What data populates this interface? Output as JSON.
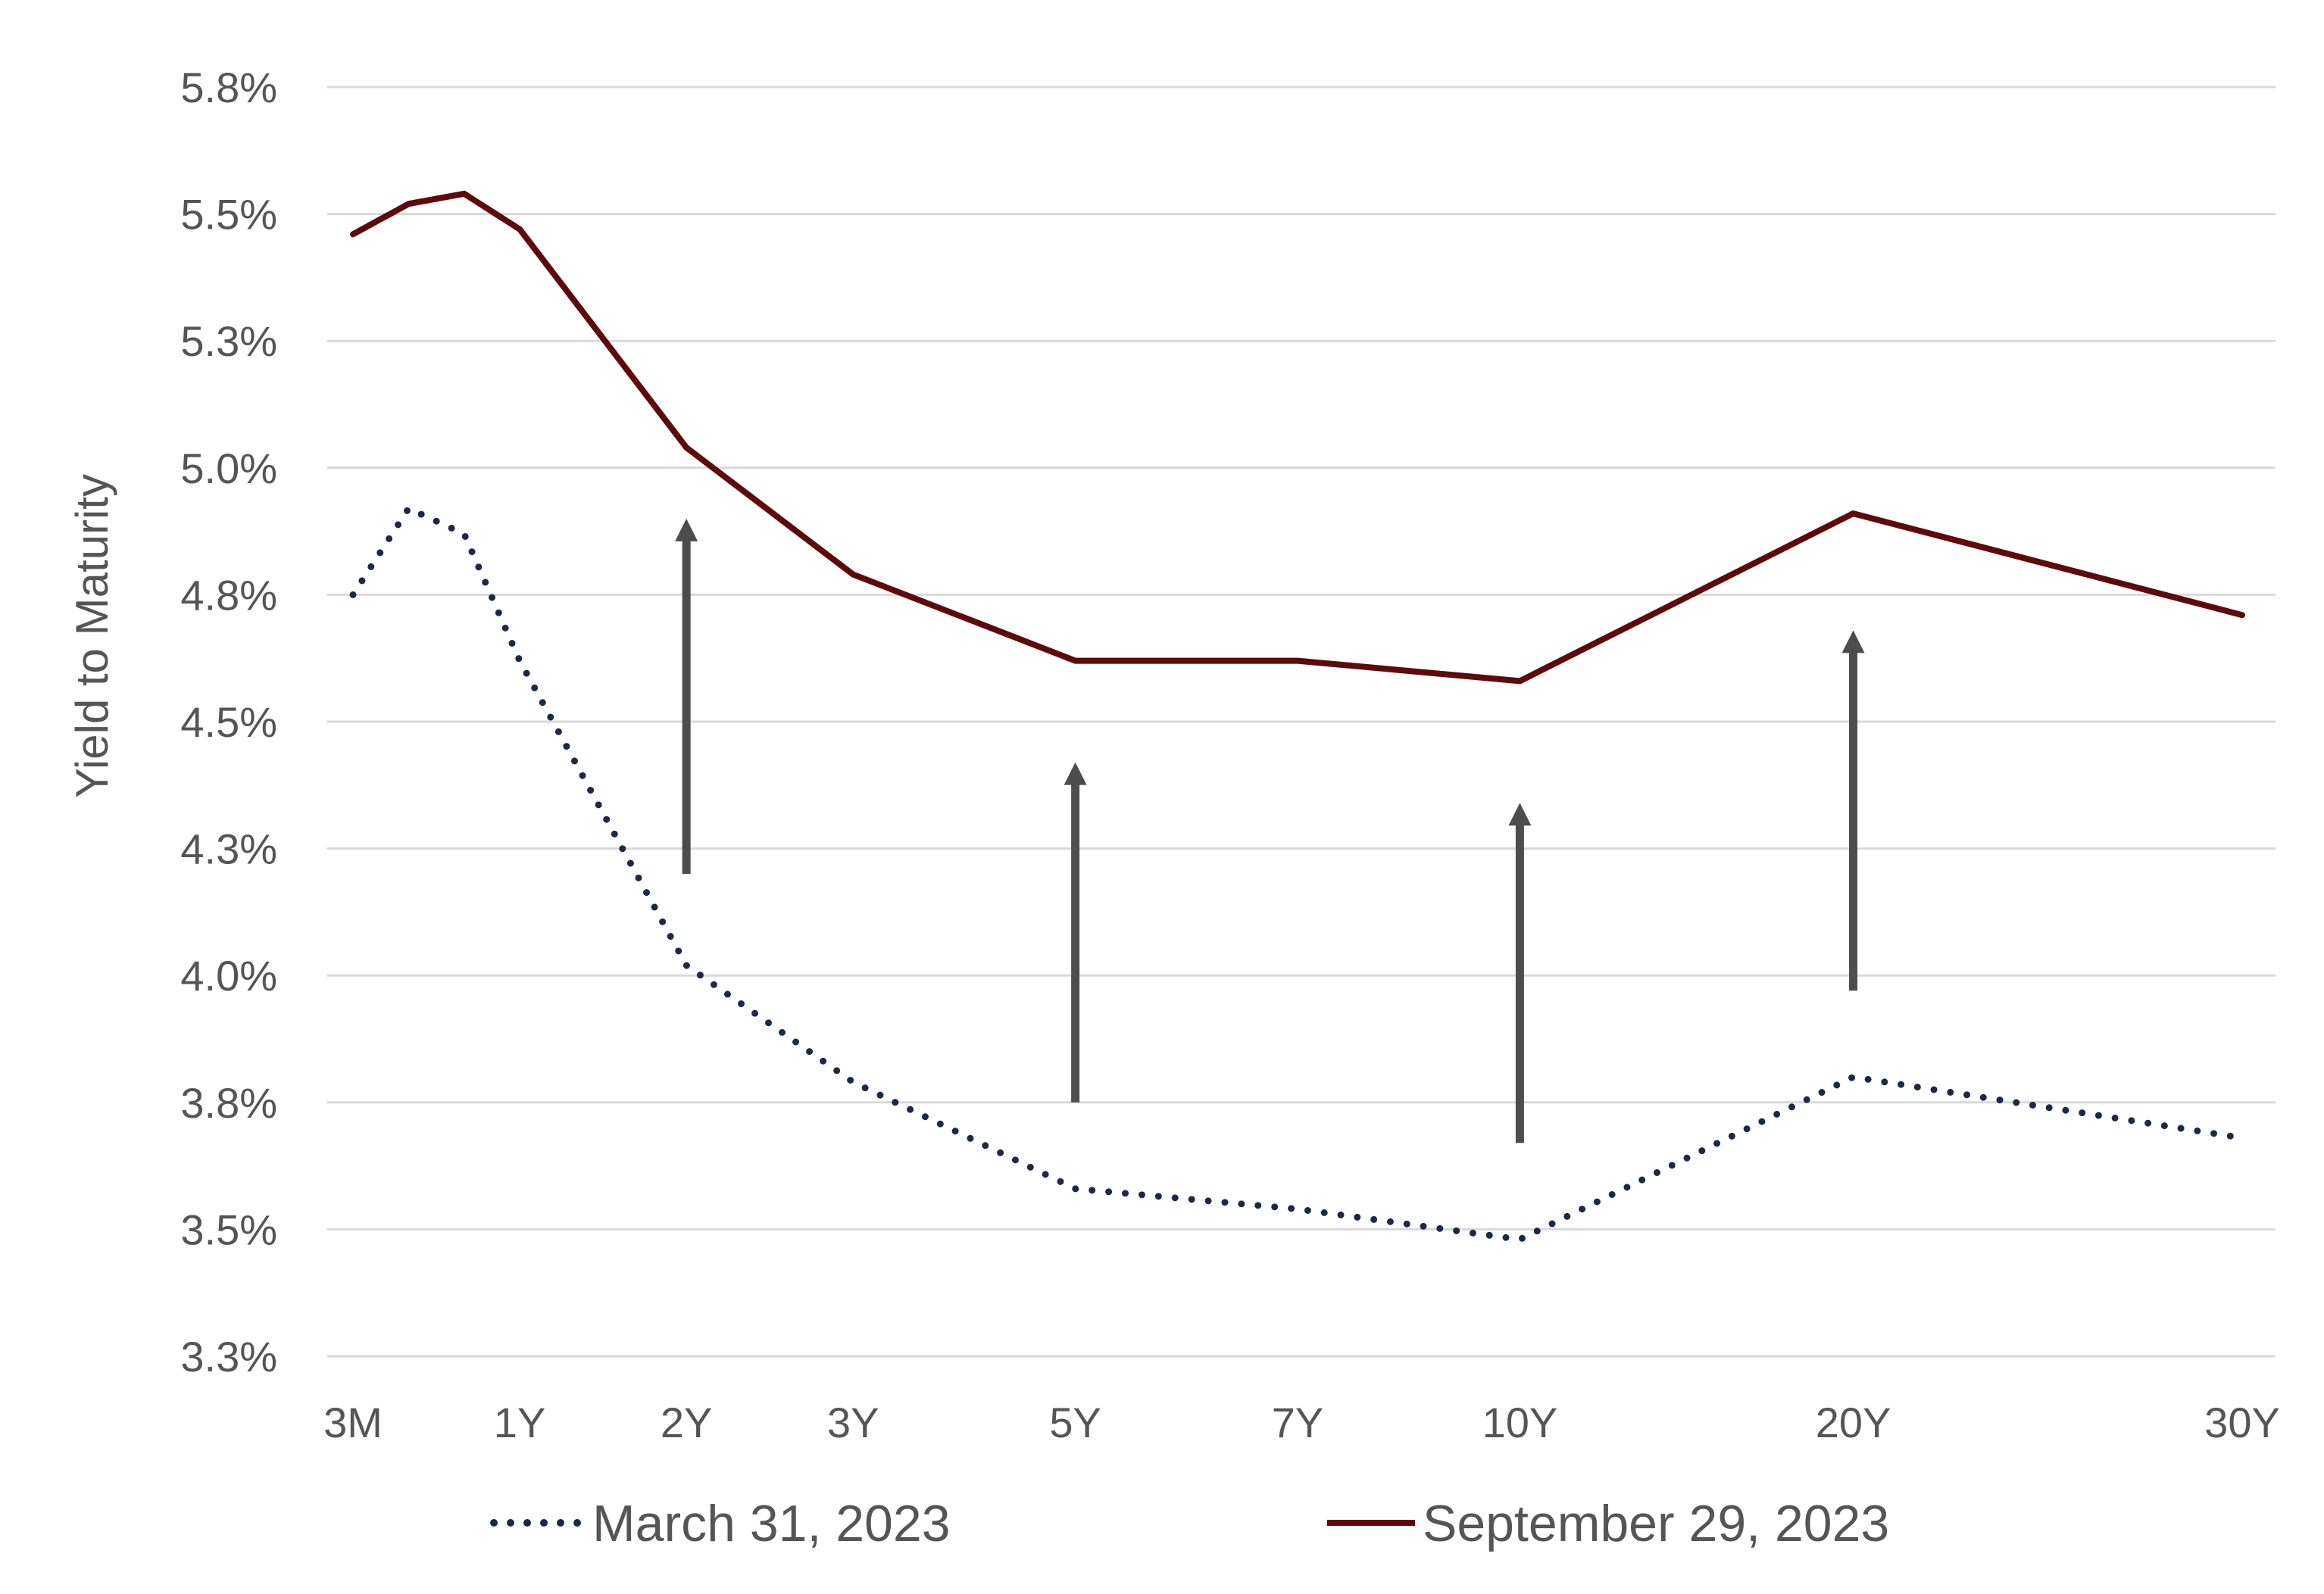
{
  "chart_data": {
    "type": "line",
    "title": "",
    "xlabel": "",
    "ylabel": "Yield to Maturity",
    "y_tick_labels": [
      "3.3%",
      "3.5%",
      "3.8%",
      "4.0%",
      "4.3%",
      "4.5%",
      "4.8%",
      "5.0%",
      "5.3%",
      "5.5%",
      "5.8%"
    ],
    "x_tick_labels": [
      "3M",
      "1Y",
      "2Y",
      "3Y",
      "5Y",
      "7Y",
      "10Y",
      "20Y",
      "30Y"
    ],
    "ylim": [
      3.25,
      5.75
    ],
    "y_tick_values": [
      3.25,
      3.5,
      3.75,
      4.0,
      4.25,
      4.5,
      4.75,
      5.0,
      5.25,
      5.5,
      5.75
    ],
    "x_tick_positions": [
      0,
      3,
      6,
      9,
      13,
      17,
      21,
      27,
      34
    ],
    "xlim": [
      0,
      34
    ],
    "grid": true,
    "legend_position": "bottom",
    "series": [
      {
        "name": "March 31, 2023",
        "style": "dotted",
        "color": "#1b2a41",
        "x": [
          0,
          1,
          2,
          3,
          6,
          9,
          13,
          17,
          21,
          27,
          34
        ],
        "y": [
          4.75,
          4.92,
          4.87,
          4.62,
          4.02,
          3.79,
          3.58,
          3.54,
          3.48,
          3.8,
          3.68
        ]
      },
      {
        "name": "September 29, 2023",
        "style": "solid",
        "color": "#5e0a0a",
        "x": [
          0,
          1,
          2,
          3,
          6,
          9,
          13,
          17,
          21,
          27,
          34
        ],
        "y": [
          5.46,
          5.52,
          5.54,
          5.47,
          5.04,
          4.79,
          4.62,
          4.62,
          4.58,
          4.91,
          4.71
        ]
      }
    ],
    "annotations": {
      "type": "up-arrows",
      "color": "#4d4d4d",
      "arrows": [
        {
          "x": 6,
          "from": 4.2,
          "to": 4.9
        },
        {
          "x": 13,
          "from": 3.75,
          "to": 4.42
        },
        {
          "x": 21,
          "from": 3.67,
          "to": 4.34
        },
        {
          "x": 27,
          "from": 3.97,
          "to": 4.68
        }
      ]
    }
  }
}
